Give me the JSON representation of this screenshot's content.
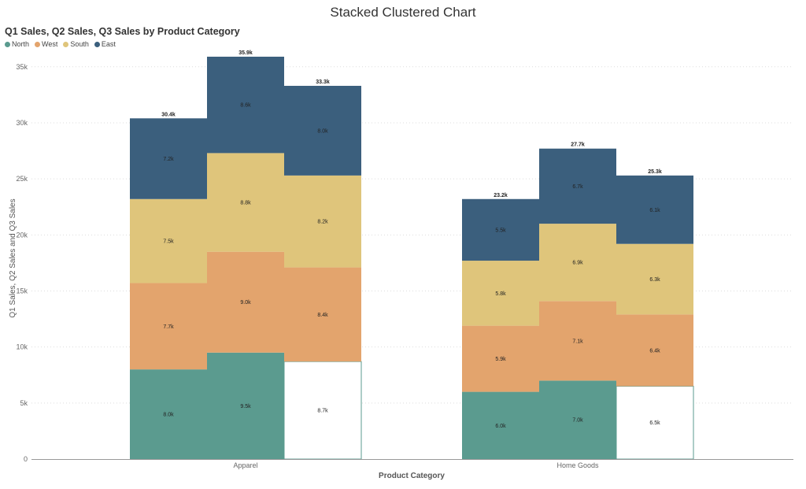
{
  "page_title": "Stacked Clustered Chart",
  "chart_data": {
    "type": "bar",
    "title": "Q1 Sales, Q2 Sales, Q3 Sales by Product Category",
    "xlabel": "Product Category",
    "ylabel": "Q1 Sales, Q2 Sales and Q3 Sales",
    "ylim": [
      0,
      36000
    ],
    "y_ticks": [
      0,
      5000,
      10000,
      15000,
      20000,
      25000,
      30000,
      35000
    ],
    "y_tick_labels": [
      "0",
      "5k",
      "10k",
      "15k",
      "20k",
      "25k",
      "30k",
      "35k"
    ],
    "grid": "horizontal dotted",
    "legend_position": "top-left",
    "categories": [
      "Apparel",
      "Home Goods"
    ],
    "clusters": [
      "Q1 Sales",
      "Q2 Sales",
      "Q3 Sales"
    ],
    "series": [
      {
        "name": "North",
        "color": "#5b9b8f",
        "values": [
          [
            8000,
            9500,
            8700
          ],
          [
            6000,
            7000,
            6500
          ]
        ],
        "labels": [
          [
            "8.0k",
            "9.5k",
            "8.7k"
          ],
          [
            "6.0k",
            "7.0k",
            "6.5k"
          ]
        ]
      },
      {
        "name": "West",
        "color": "#e3a46d",
        "values": [
          [
            7700,
            9000,
            8400
          ],
          [
            5900,
            7100,
            6400
          ]
        ],
        "labels": [
          [
            "7.7k",
            "9.0k",
            "8.4k"
          ],
          [
            "5.9k",
            "7.1k",
            "6.4k"
          ]
        ]
      },
      {
        "name": "South",
        "color": "#dfc57b",
        "values": [
          [
            7500,
            8800,
            8200
          ],
          [
            5800,
            6900,
            6300
          ]
        ],
        "labels": [
          [
            "7.5k",
            "8.8k",
            "8.2k"
          ],
          [
            "5.8k",
            "6.9k",
            "6.3k"
          ]
        ]
      },
      {
        "name": "East",
        "color": "#3b5f7d",
        "values": [
          [
            7200,
            8600,
            8000
          ],
          [
            5500,
            6700,
            6100
          ]
        ],
        "labels": [
          [
            "7.2k",
            "8.6k",
            "8.0k"
          ],
          [
            "5.5k",
            "6.7k",
            "6.1k"
          ]
        ]
      }
    ],
    "totals": [
      [
        30400,
        35900,
        33300
      ],
      [
        23200,
        27700,
        25300
      ]
    ],
    "total_labels": [
      [
        "30.4k",
        "35.9k",
        "33.3k"
      ],
      [
        "23.2k",
        "27.7k",
        "25.3k"
      ]
    ],
    "white_segments": [
      [
        false,
        false,
        true
      ],
      [
        false,
        false,
        true
      ]
    ]
  }
}
